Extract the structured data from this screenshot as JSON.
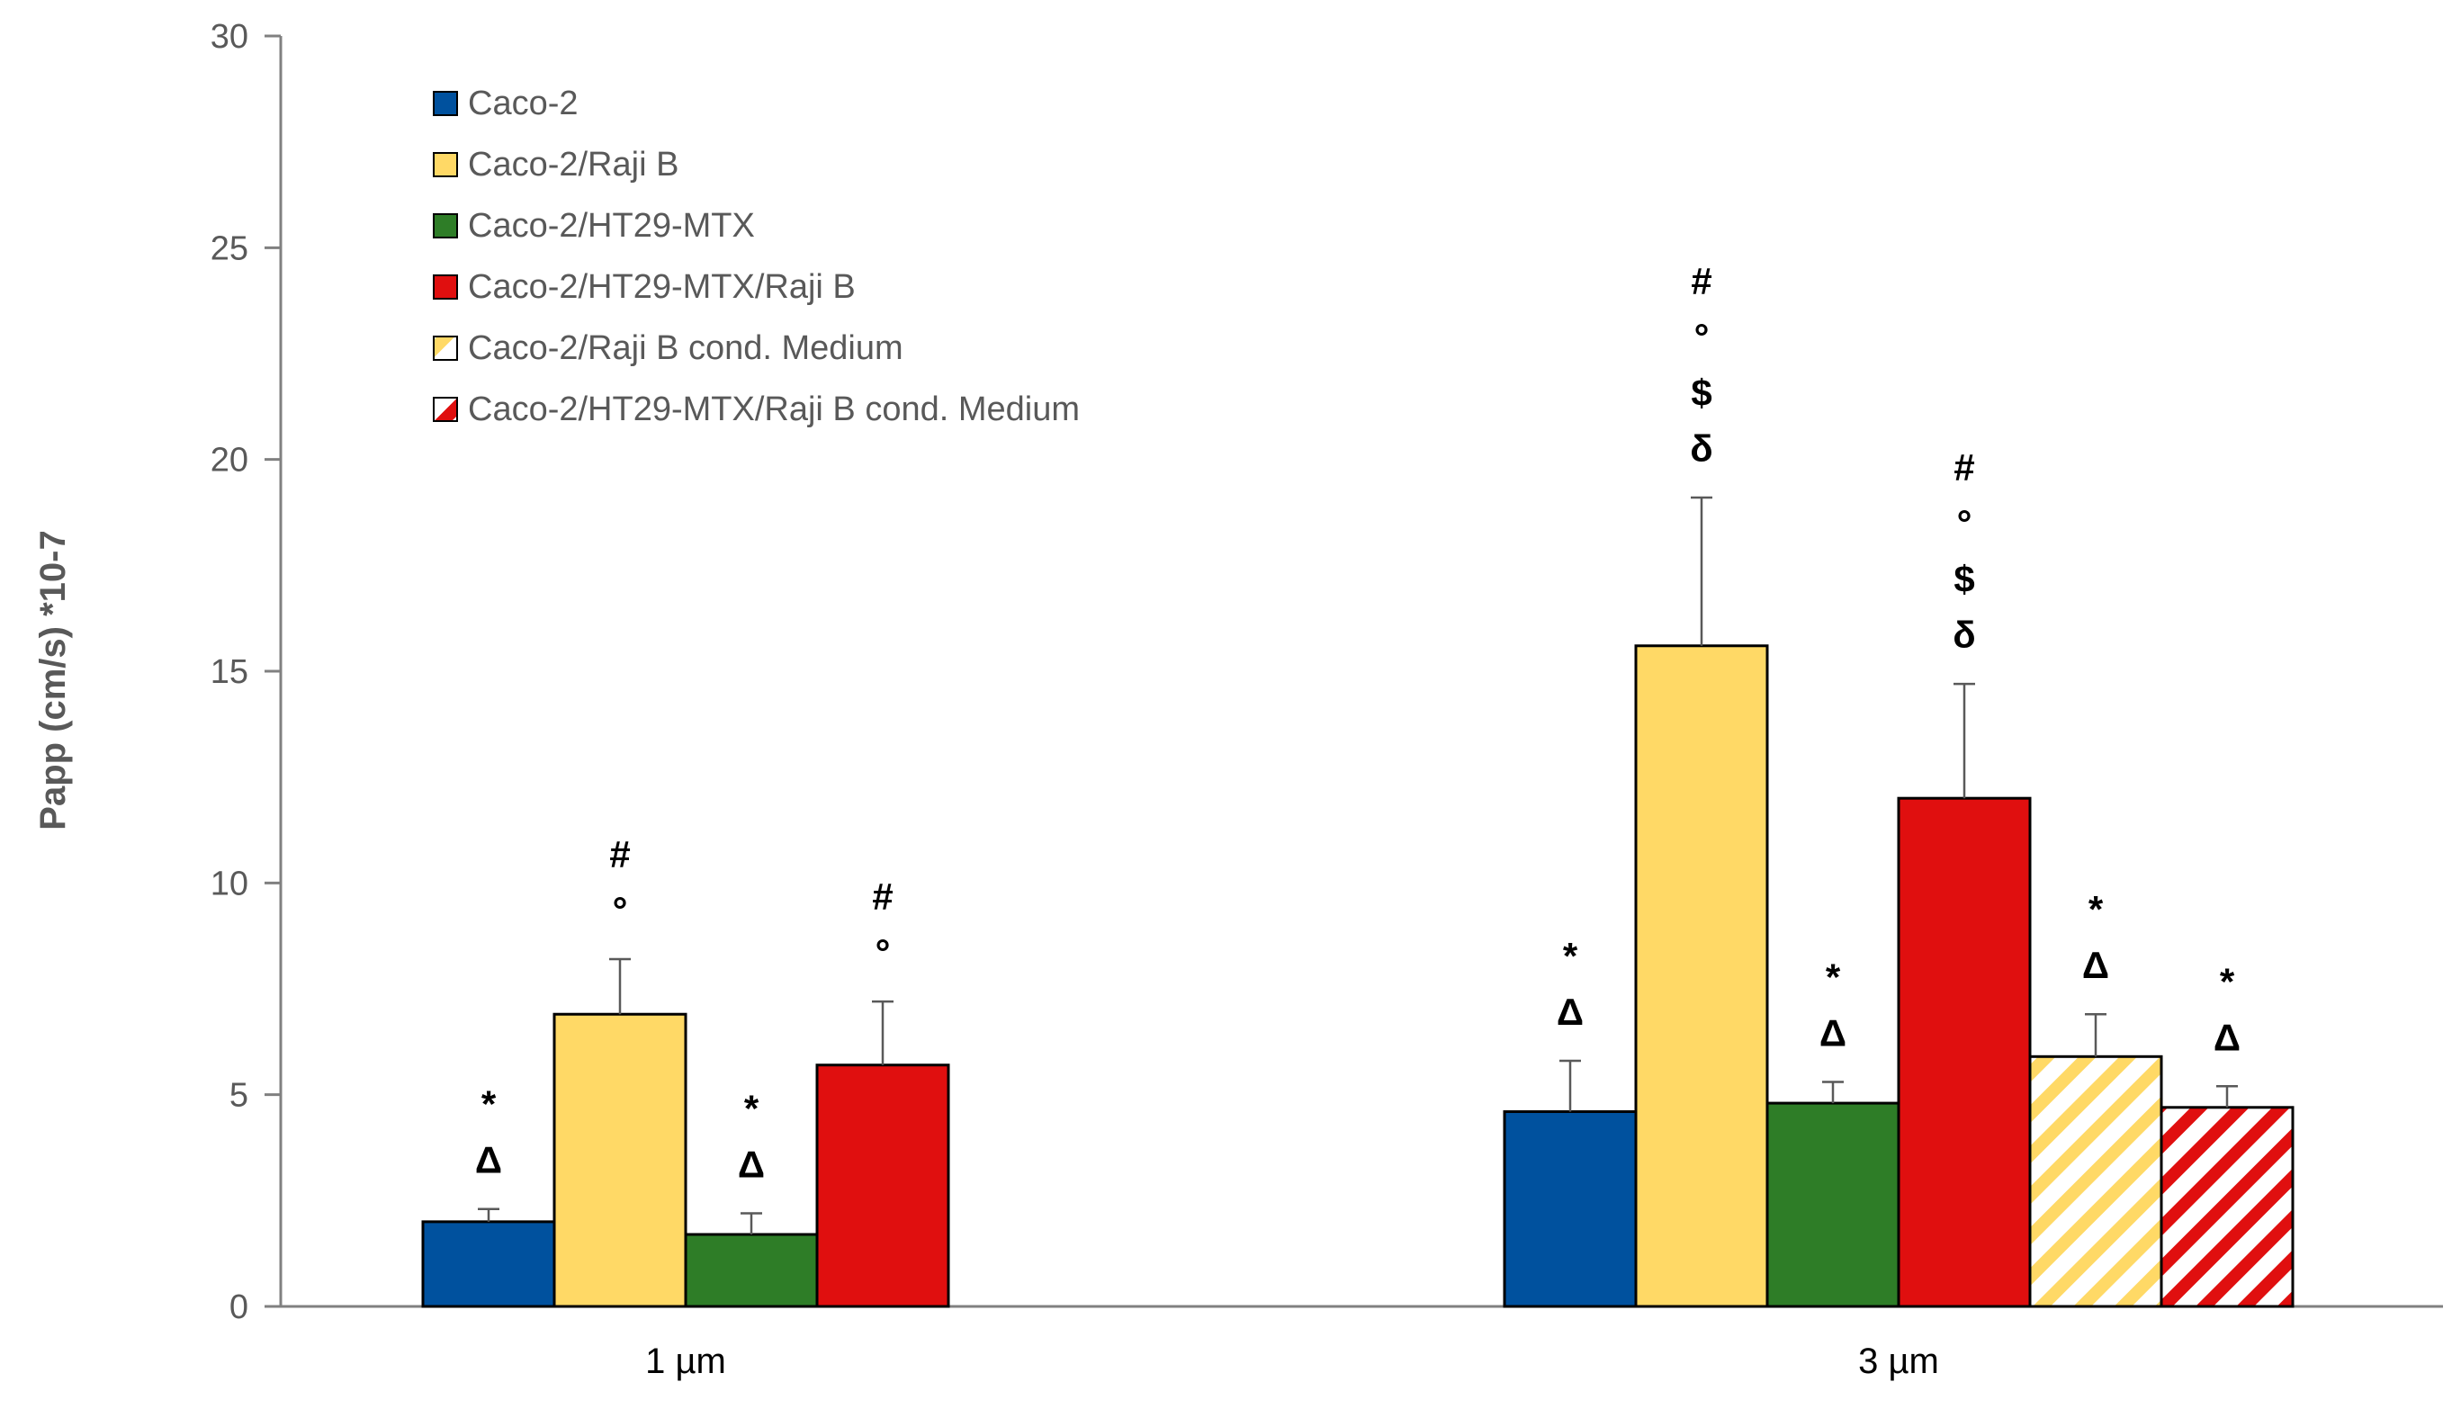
{
  "chart_data": {
    "type": "bar",
    "title": "",
    "xlabel": "",
    "ylabel": "Papp (cm/s) *10-7",
    "ylim": [
      0,
      30
    ],
    "yticks": [
      0,
      5,
      10,
      15,
      20,
      25,
      30
    ],
    "grid": false,
    "legend_position": "top-left",
    "categories": [
      "1 µm",
      "3 µm"
    ],
    "series": [
      {
        "name": "Caco-2",
        "color": "#00519e",
        "pattern": "solid",
        "values": [
          2.0,
          4.6
        ],
        "errors": [
          0.3,
          1.2
        ],
        "annotations": [
          [
            "*",
            "Δ"
          ],
          [
            "*",
            "Δ"
          ]
        ]
      },
      {
        "name": "Caco-2/Raji B",
        "color": "#ffd966",
        "pattern": "solid",
        "values": [
          6.9,
          15.6
        ],
        "errors": [
          1.3,
          3.5
        ],
        "annotations": [
          [
            "#",
            "°"
          ],
          [
            "#",
            "°",
            "$",
            "δ"
          ]
        ]
      },
      {
        "name": "Caco-2/HT29-MTX",
        "color": "#2e7d27",
        "pattern": "solid",
        "values": [
          1.7,
          4.8
        ],
        "errors": [
          0.5,
          0.5
        ],
        "annotations": [
          [
            "*",
            "Δ"
          ],
          [
            "*",
            "Δ"
          ]
        ]
      },
      {
        "name": "Caco-2/HT29-MTX/Raji B",
        "color": "#e00f0f",
        "pattern": "solid",
        "values": [
          5.7,
          12.0
        ],
        "errors": [
          1.5,
          2.7
        ],
        "annotations": [
          [
            "#",
            "°"
          ],
          [
            "#",
            "°",
            "$",
            "δ"
          ]
        ]
      },
      {
        "name": "Caco-2/Raji B cond. Medium",
        "color": "#ffd966",
        "pattern": "striped",
        "values": [
          null,
          5.9
        ],
        "errors": [
          null,
          1.0
        ],
        "annotations": [
          [],
          [
            "*",
            "Δ"
          ]
        ]
      },
      {
        "name": "Caco-2/HT29-MTX/Raji B cond. Medium",
        "color": "#e00f0f",
        "pattern": "striped",
        "values": [
          null,
          4.7
        ],
        "errors": [
          null,
          0.5
        ],
        "annotations": [
          [],
          [
            "*",
            "Δ"
          ]
        ]
      }
    ]
  }
}
